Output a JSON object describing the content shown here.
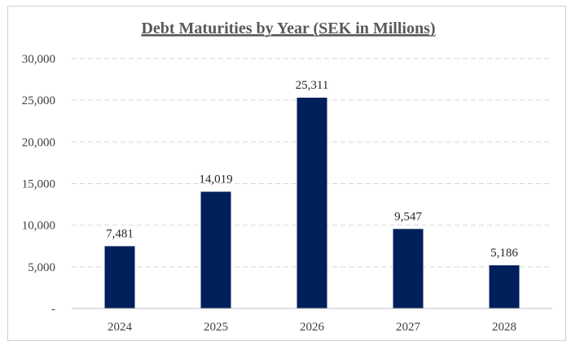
{
  "chart_data": {
    "type": "bar",
    "title": "Debt Maturities by Year (SEK in Millions)",
    "xlabel": "",
    "ylabel": "",
    "categories": [
      "2024",
      "2025",
      "2026",
      "2027",
      "2028"
    ],
    "values": [
      7481,
      14019,
      25311,
      9547,
      5186
    ],
    "data_labels": [
      "7,481",
      "14,019",
      "25,311",
      "9,547",
      "5,186"
    ],
    "ylim": [
      0,
      30000
    ],
    "y_ticks": [
      0,
      5000,
      10000,
      15000,
      20000,
      25000,
      30000
    ],
    "y_tick_labels": [
      "-",
      "5,000",
      "10,000",
      "15,000",
      "20,000",
      "25,000",
      "30,000"
    ],
    "grid": true,
    "legend": "none",
    "bar_color": "#00205b"
  }
}
